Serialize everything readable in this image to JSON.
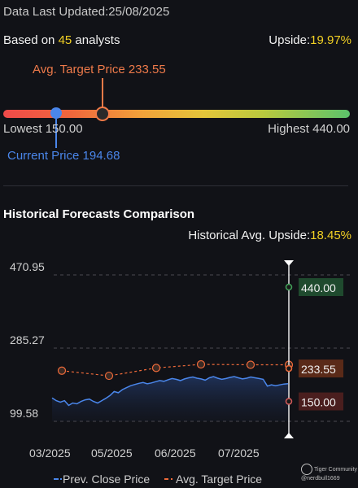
{
  "header": {
    "updated_label": "Data Last Updated:",
    "updated_date": "25/08/2025",
    "based_on_prefix": "Based on ",
    "analyst_count": "45",
    "based_on_suffix": " analysts",
    "upside_label": "Upside:",
    "upside_value": "19.97%"
  },
  "range": {
    "avg_target_label": "Avg. Target Price 233.55",
    "lowest_label": "Lowest 150.00",
    "highest_label": "Highest 440.00",
    "current_label": "Current Price 194.68",
    "low": 150.0,
    "high": 440.0,
    "avg_target": 233.55,
    "current": 194.68
  },
  "history": {
    "title": "Historical Forecasts Comparison",
    "upside_label": "Historical Avg. Upside:",
    "upside_value": "18.45%"
  },
  "chart_data": {
    "type": "line",
    "x_ticks": [
      "03/2025",
      "05/2025",
      "06/2025",
      "07/2025"
    ],
    "y_ticks": [
      99.58,
      285.27,
      470.95
    ],
    "ylim": [
      99.58,
      470.95
    ],
    "series": [
      {
        "name": "Prev. Close Price",
        "color": "#4a86ea",
        "values": [
          159,
          152,
          148,
          152,
          140,
          146,
          144,
          150,
          154,
          156,
          150,
          146,
          152,
          158,
          165,
          175,
          172,
          180,
          185,
          190,
          193,
          196,
          198,
          195,
          197,
          200,
          203,
          201,
          205,
          208,
          206,
          203,
          207,
          210,
          212,
          209,
          207,
          204,
          210,
          213,
          209,
          206,
          208,
          211,
          213,
          210,
          207,
          209,
          212,
          210,
          208,
          206,
          189,
          192,
          190,
          192,
          194,
          195
        ]
      },
      {
        "name": "Avg. Target Price",
        "color": "#ee6a3a",
        "values": [
          228,
          215,
          235,
          244,
          243,
          243,
          233.55
        ]
      }
    ],
    "target_markers": [
      {
        "label": "440.00",
        "value": 440.0,
        "color": "#41a35a"
      },
      {
        "label": "233.55",
        "value": 233.55,
        "color": "#ee6a3a"
      },
      {
        "label": "150.00",
        "value": 150.0,
        "color": "#d45a5a"
      }
    ],
    "grid": true,
    "legend": "bottom"
  },
  "legend": {
    "close_label": "Prev. Close Price",
    "target_label": "Avg. Target Price"
  },
  "watermark": {
    "brand": "Tiger Community",
    "user": "@nerdbull1669"
  }
}
